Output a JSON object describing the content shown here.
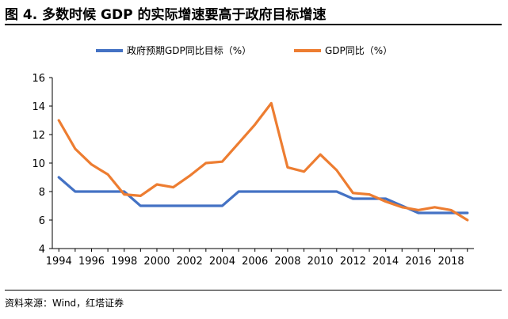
{
  "header": {
    "title": "图 4. 多数时候 GDP 的实际增速要高于政府目标增速"
  },
  "footer": {
    "source_label": "资料来源：",
    "source_text": "Wind，红塔证券"
  },
  "chart_data": {
    "type": "line",
    "title": "",
    "xlabel": "",
    "ylabel": "",
    "ylim": [
      4,
      16
    ],
    "yticks": [
      4,
      6,
      8,
      10,
      12,
      14,
      16
    ],
    "xlim": [
      1993.6,
      2019.4
    ],
    "xticks": [
      1994,
      1996,
      1998,
      2000,
      2002,
      2004,
      2006,
      2008,
      2010,
      2012,
      2014,
      2016,
      2018
    ],
    "grid": false,
    "legend_position": "top",
    "x": [
      1994,
      1995,
      1996,
      1997,
      1998,
      1999,
      2000,
      2001,
      2002,
      2003,
      2004,
      2005,
      2006,
      2007,
      2008,
      2009,
      2010,
      2011,
      2012,
      2013,
      2014,
      2015,
      2016,
      2017,
      2018,
      2019
    ],
    "series": [
      {
        "name": "政府预期GDP同比目标（%）",
        "color": "#4472C4",
        "values": [
          9.0,
          8.0,
          8.0,
          8.0,
          8.0,
          7.0,
          7.0,
          7.0,
          7.0,
          7.0,
          7.0,
          8.0,
          8.0,
          8.0,
          8.0,
          8.0,
          8.0,
          8.0,
          7.5,
          7.5,
          7.5,
          7.0,
          6.5,
          6.5,
          6.5,
          6.5
        ]
      },
      {
        "name": "GDP同比（%）",
        "color": "#ED7D31",
        "values": [
          13.0,
          11.0,
          9.9,
          9.2,
          7.8,
          7.7,
          8.5,
          8.3,
          9.1,
          10.0,
          10.1,
          11.4,
          12.7,
          14.2,
          9.7,
          9.4,
          10.6,
          9.5,
          7.9,
          7.8,
          7.3,
          6.9,
          6.7,
          6.9,
          6.7,
          6.0
        ]
      }
    ]
  }
}
